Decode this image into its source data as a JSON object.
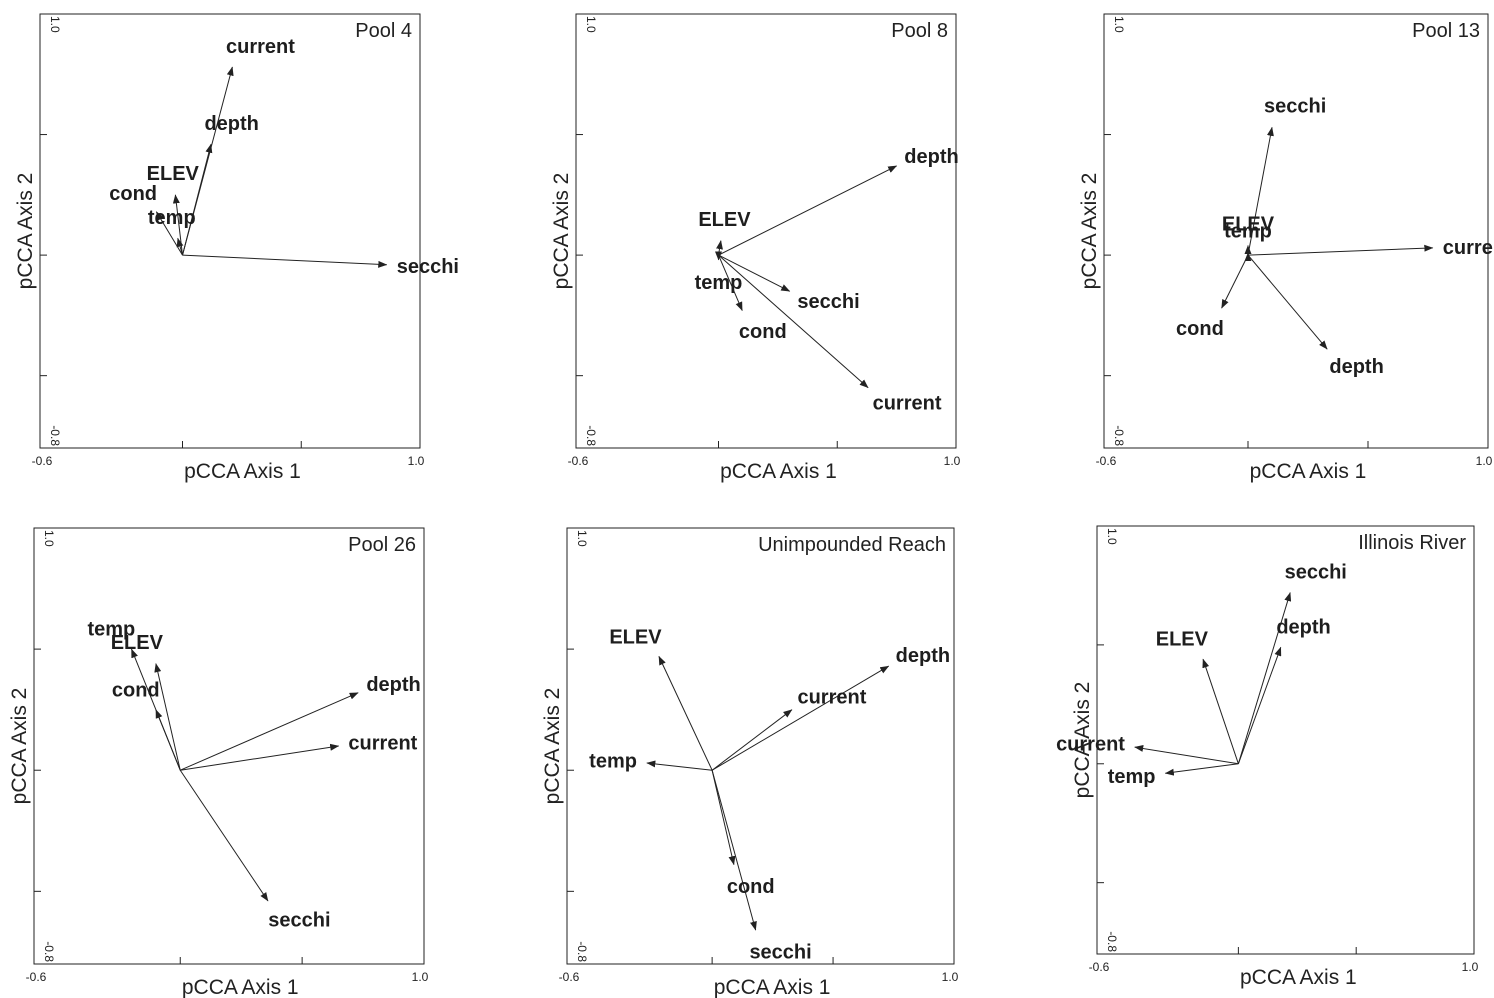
{
  "chart_data": [
    {
      "type": "biplot",
      "title": "Pool 4",
      "xlabel": "pCCA Axis 1",
      "ylabel": "pCCA Axis 2",
      "xlim": [
        -0.6,
        1.0
      ],
      "ylim": [
        -0.8,
        1.0
      ],
      "x_tick_labels": [
        "-0.6",
        "1.0"
      ],
      "y_tick_labels": [
        "1.0",
        "-0.8"
      ],
      "vectors": [
        {
          "label": "current",
          "x": 0.21,
          "y": 0.78
        },
        {
          "label": "depth",
          "x": 0.12,
          "y": 0.46
        },
        {
          "label": "ELEV",
          "x": -0.03,
          "y": 0.25
        },
        {
          "label": "cond",
          "x": -0.11,
          "y": 0.18
        },
        {
          "label": "temp",
          "x": -0.02,
          "y": 0.07
        },
        {
          "label": "secchi",
          "x": 0.86,
          "y": -0.04
        }
      ]
    },
    {
      "type": "biplot",
      "title": "Pool 8",
      "xlabel": "pCCA Axis 1",
      "ylabel": "pCCA Axis 2",
      "xlim": [
        -0.6,
        1.0
      ],
      "ylim": [
        -0.8,
        1.0
      ],
      "x_tick_labels": [
        "-0.6",
        "1.0"
      ],
      "y_tick_labels": [
        "1.0",
        "-0.8"
      ],
      "vectors": [
        {
          "label": "depth",
          "x": 0.75,
          "y": 0.37
        },
        {
          "label": "ELEV",
          "x": 0.01,
          "y": 0.06
        },
        {
          "label": "temp",
          "x": 0.0,
          "y": -0.02
        },
        {
          "label": "cond",
          "x": 0.1,
          "y": -0.23
        },
        {
          "label": "secchi",
          "x": 0.3,
          "y": -0.15
        },
        {
          "label": "current",
          "x": 0.63,
          "y": -0.55
        }
      ]
    },
    {
      "type": "biplot",
      "title": "Pool 13",
      "xlabel": "pCCA Axis 1",
      "ylabel": "pCCA Axis 2",
      "xlim": [
        -0.6,
        1.0
      ],
      "ylim": [
        -0.8,
        1.0
      ],
      "x_tick_labels": [
        "-0.6",
        "1.0"
      ],
      "y_tick_labels": [
        "1.0",
        "-0.8"
      ],
      "vectors": [
        {
          "label": "secchi",
          "x": 0.1,
          "y": 0.53
        },
        {
          "label": "ELEV",
          "x": 0.0,
          "y": 0.04
        },
        {
          "label": "temp",
          "x": 0.0,
          "y": 0.01
        },
        {
          "label": "current",
          "x": 0.77,
          "y": 0.03
        },
        {
          "label": "cond",
          "x": -0.11,
          "y": -0.22
        },
        {
          "label": "depth",
          "x": 0.33,
          "y": -0.39
        }
      ]
    },
    {
      "type": "biplot",
      "title": "Pool 26",
      "xlabel": "pCCA Axis 1",
      "ylabel": "pCCA Axis 2",
      "xlim": [
        -0.6,
        1.0
      ],
      "ylim": [
        -0.8,
        1.0
      ],
      "x_tick_labels": [
        "-0.6",
        "1.0"
      ],
      "y_tick_labels": [
        "1.0",
        "-0.8"
      ],
      "vectors": [
        {
          "label": "temp",
          "x": -0.2,
          "y": 0.5
        },
        {
          "label": "ELEV",
          "x": -0.1,
          "y": 0.44
        },
        {
          "label": "cond",
          "x": -0.1,
          "y": 0.25
        },
        {
          "label": "depth",
          "x": 0.73,
          "y": 0.32
        },
        {
          "label": "current",
          "x": 0.65,
          "y": 0.1
        },
        {
          "label": "secchi",
          "x": 0.36,
          "y": -0.54
        }
      ]
    },
    {
      "type": "biplot",
      "title": "Unimpounded Reach",
      "xlabel": "pCCA Axis 1",
      "ylabel": "pCCA Axis 2",
      "xlim": [
        -0.6,
        1.0
      ],
      "ylim": [
        -0.8,
        1.0
      ],
      "x_tick_labels": [
        "-0.6",
        "1.0"
      ],
      "y_tick_labels": [
        "1.0",
        "-0.8"
      ],
      "vectors": [
        {
          "label": "ELEV",
          "x": -0.22,
          "y": 0.47
        },
        {
          "label": "depth",
          "x": 0.73,
          "y": 0.43
        },
        {
          "label": "current",
          "x": 0.33,
          "y": 0.25
        },
        {
          "label": "temp",
          "x": -0.27,
          "y": 0.03
        },
        {
          "label": "cond",
          "x": 0.09,
          "y": -0.39
        },
        {
          "label": "secchi",
          "x": 0.18,
          "y": -0.66
        }
      ]
    },
    {
      "type": "biplot",
      "title": "Illinois River",
      "xlabel": "pCCA Axis 1",
      "ylabel": "pCCA Axis 2",
      "xlim": [
        -0.6,
        1.0
      ],
      "ylim": [
        -0.8,
        1.0
      ],
      "x_tick_labels": [
        "-0.6",
        "1.0"
      ],
      "y_tick_labels": [
        "1.0",
        "-0.8"
      ],
      "vectors": [
        {
          "label": "secchi",
          "x": 0.22,
          "y": 0.72
        },
        {
          "label": "ELEV",
          "x": -0.15,
          "y": 0.44
        },
        {
          "label": "depth",
          "x": 0.18,
          "y": 0.49
        },
        {
          "label": "current",
          "x": -0.44,
          "y": 0.07
        },
        {
          "label": "temp",
          "x": -0.31,
          "y": -0.04
        }
      ]
    }
  ]
}
